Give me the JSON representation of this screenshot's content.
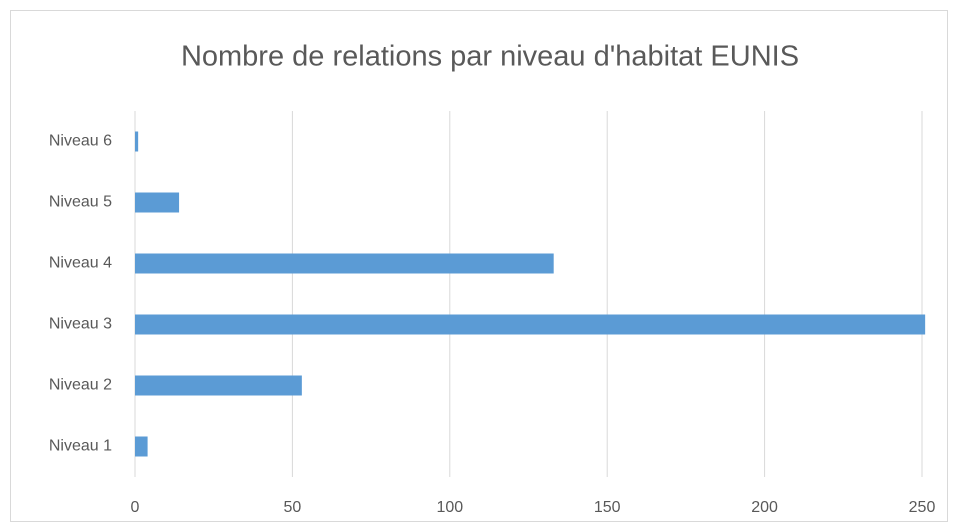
{
  "chart_data": {
    "type": "barh",
    "title": "Nombre de relations par niveau d'habitat EUNIS",
    "categories": [
      "Niveau 1",
      "Niveau 2",
      "Niveau 3",
      "Niveau 4",
      "Niveau 5",
      "Niveau 6"
    ],
    "values": [
      4,
      53,
      251,
      133,
      14,
      1
    ],
    "color": "#5b9bd5",
    "xlim": [
      0,
      250
    ],
    "xticks": [
      0,
      50,
      100,
      150,
      200,
      250
    ],
    "grid": true
  }
}
